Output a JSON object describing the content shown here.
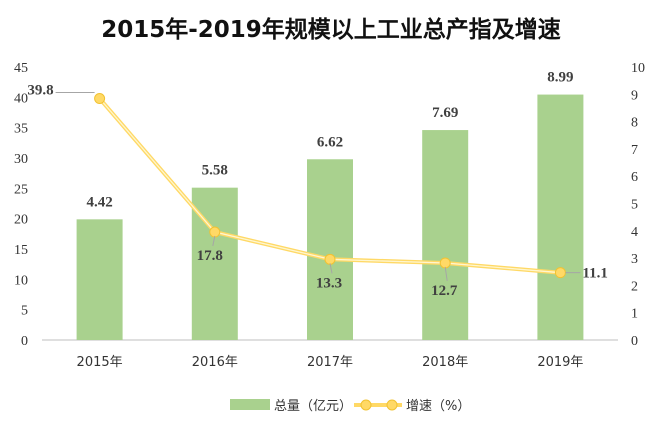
{
  "chart_data": {
    "type": "bar",
    "title": "2015年-2019年规模以上工业总产指及增速",
    "categories": [
      "2015年",
      "2016年",
      "2017年",
      "2018年",
      "2019年"
    ],
    "series": [
      {
        "name": "总量（亿元）",
        "type": "bar",
        "axis": "left",
        "values": [
          4.42,
          5.58,
          6.62,
          7.69,
          8.99
        ],
        "color": "#a9d18e"
      },
      {
        "name": "增速（%）",
        "type": "line",
        "axis": "right",
        "values": [
          39.8,
          17.8,
          13.3,
          12.7,
          11.1
        ],
        "color": "#ffd966"
      }
    ],
    "ylim_left": [
      0,
      45
    ],
    "yticks_left": [
      0,
      5,
      10,
      15,
      20,
      25,
      30,
      35,
      40,
      45
    ],
    "ylim_right": [
      0,
      10
    ],
    "yticks_right": [
      0,
      1,
      2,
      3,
      4,
      5,
      6,
      7,
      8,
      9,
      10
    ],
    "legend_position": "bottom",
    "grid": false
  }
}
